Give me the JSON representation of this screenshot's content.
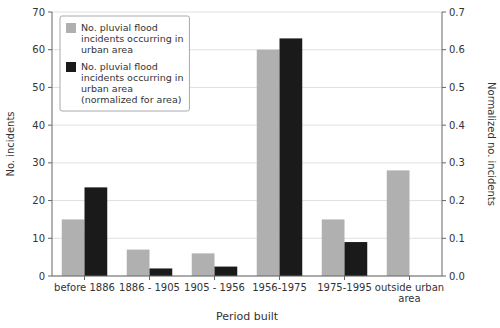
{
  "chart_data": {
    "type": "bar",
    "xlabel": "Period built",
    "ylabel": "No. incidents",
    "y2label": "Normalized no. incidents",
    "categories": [
      "before 1886",
      "1886 - 1905",
      "1905 - 1956",
      "1956-1975",
      "1975-1995",
      "outside urban\narea"
    ],
    "series": [
      {
        "name": "No. pluvial flood\nincidents occurring in\nurban area",
        "color": "#b0b0b0",
        "values": [
          15,
          7,
          6,
          60,
          15,
          28
        ]
      },
      {
        "name": "No. pluvial flood\nincidents occurring in\nurban area\n(normalized for area)",
        "color": "#1a1a1a",
        "values": [
          0.235,
          0.02,
          0.025,
          0.63,
          0.09,
          0
        ],
        "axis": "y2"
      }
    ],
    "ylim": [
      0,
      70
    ],
    "yticks": [
      0,
      10,
      20,
      30,
      40,
      50,
      60,
      70
    ],
    "y2lim": [
      0,
      0.7
    ],
    "y2ticks": [
      {
        "value": 0.0,
        "label": "0.0"
      },
      0.1,
      0.2,
      0.3,
      0.4,
      0.5,
      0.6,
      0.7
    ],
    "grid": true,
    "legend": "upper left"
  }
}
